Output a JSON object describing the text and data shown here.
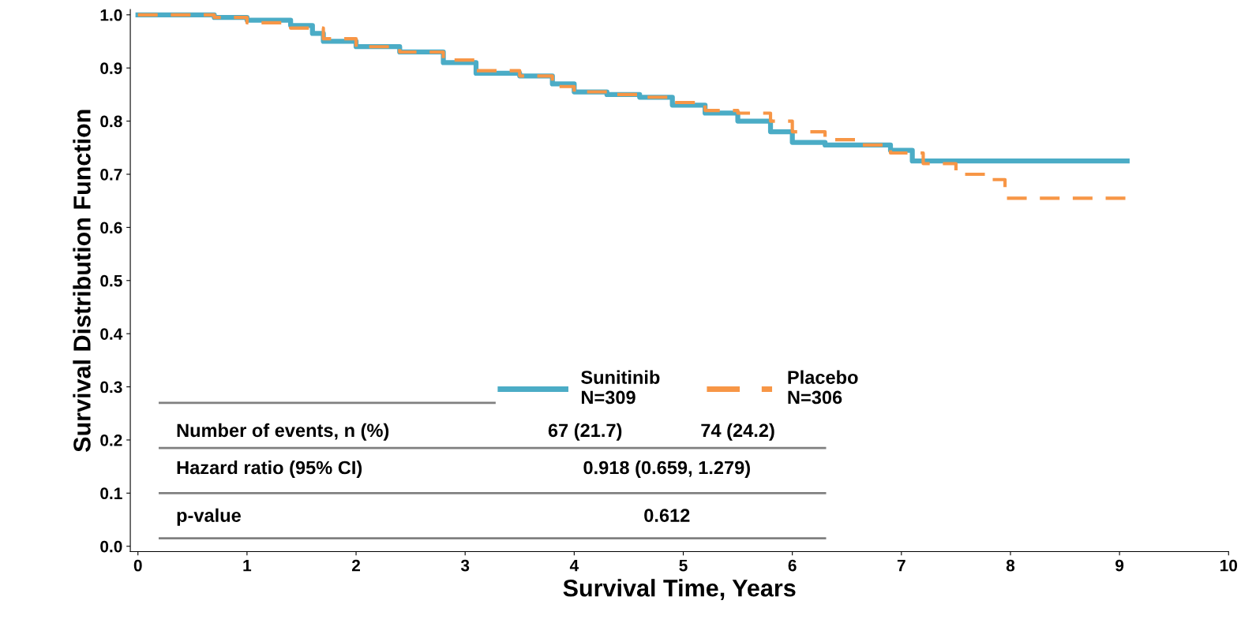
{
  "chart_data": {
    "type": "step",
    "xlabel": "Survival Time, Years",
    "ylabel": "Survival Distribution Function",
    "xlim": [
      -0.07,
      10
    ],
    "ylim": [
      -0.01,
      1.01
    ],
    "xticks": [
      0,
      1,
      2,
      3,
      4,
      5,
      6,
      7,
      8,
      9,
      10
    ],
    "yticks": [
      {
        "value": 0,
        "label": "0.0"
      },
      {
        "value": 0.1,
        "label": "0.1"
      },
      {
        "value": 0.2,
        "label": "0.2"
      },
      {
        "value": 0.3,
        "label": "0.3"
      },
      {
        "value": 0.4,
        "label": "0.4"
      },
      {
        "value": 0.5,
        "label": "0.5"
      },
      {
        "value": 0.6,
        "label": "0.6"
      },
      {
        "value": 0.7,
        "label": "0.7"
      },
      {
        "value": 0.8,
        "label": "0.8"
      },
      {
        "value": 0.9,
        "label": "0.9"
      },
      {
        "value": 1.0,
        "label": "1.0"
      }
    ],
    "grid": false,
    "legend": "bottom",
    "series": [
      {
        "name": "Sunitinib\nN=309",
        "color": "#4bacc6",
        "line_style": "solid",
        "x": [
          0,
          0.7,
          1.0,
          1.4,
          1.6,
          1.7,
          2.0,
          2.4,
          2.8,
          3.1,
          3.5,
          3.8,
          4.0,
          4.3,
          4.6,
          4.9,
          5.2,
          5.5,
          5.8,
          6.0,
          6.3,
          6.6,
          6.9,
          7.1,
          9.07
        ],
        "values": [
          1.0,
          0.995,
          0.99,
          0.98,
          0.965,
          0.95,
          0.94,
          0.93,
          0.91,
          0.89,
          0.885,
          0.87,
          0.855,
          0.85,
          0.845,
          0.83,
          0.815,
          0.8,
          0.78,
          0.76,
          0.755,
          0.755,
          0.745,
          0.725,
          0.725
        ]
      },
      {
        "name": "Placebo\nN=306",
        "color": "#f79646",
        "line_style": "dashed",
        "x": [
          0,
          0.7,
          1.0,
          1.4,
          1.7,
          2.0,
          2.4,
          2.8,
          3.1,
          3.5,
          3.8,
          4.0,
          4.3,
          4.6,
          4.9,
          5.2,
          5.5,
          5.8,
          6.0,
          6.3,
          6.6,
          6.9,
          7.2,
          7.5,
          7.8,
          7.95,
          9.07
        ],
        "values": [
          1.0,
          0.995,
          0.985,
          0.975,
          0.955,
          0.94,
          0.93,
          0.915,
          0.895,
          0.885,
          0.865,
          0.855,
          0.85,
          0.845,
          0.835,
          0.82,
          0.815,
          0.8,
          0.78,
          0.765,
          0.755,
          0.74,
          0.72,
          0.7,
          0.69,
          0.655,
          0.655
        ]
      }
    ],
    "annotations": [
      "Number of events, n (%)",
      "67 (21.7)",
      "74 (24.2)",
      "Hazard ratio (95% CI)",
      "0.918 (0.659, 1.279)",
      "p-value",
      "0.612"
    ]
  }
}
